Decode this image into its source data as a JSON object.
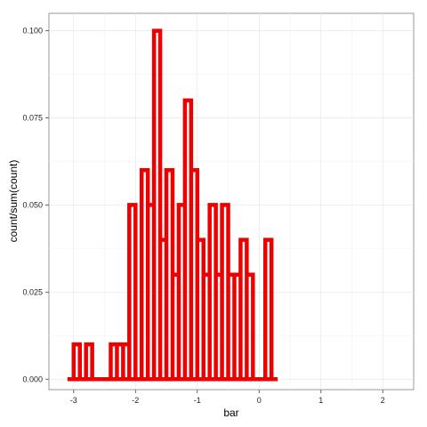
{
  "chart_data": {
    "type": "histogram",
    "xlabel": "bar",
    "ylabel": "count/sum(count)",
    "xlim": [
      -3.4,
      2.5
    ],
    "ylim": [
      -0.003,
      0.105
    ],
    "grid": true,
    "color": "#ee0000",
    "x_ticks": [
      -3,
      -2,
      -1,
      0,
      1,
      2
    ],
    "x_tick_labels": [
      "-3",
      "-2",
      "-1",
      "0",
      "1",
      "2"
    ],
    "y_ticks": [
      0,
      0.025,
      0.05,
      0.075,
      0.1
    ],
    "y_tick_labels": [
      "0.000",
      "0.025",
      "0.050",
      "0.075",
      "0.100"
    ],
    "bin_start": -3.1,
    "bin_width": 0.1,
    "values": [
      0,
      0.01,
      0,
      0.01,
      0,
      0,
      0,
      0.01,
      0.01,
      0.01,
      0.05,
      0,
      0.06,
      0.05,
      0.1,
      0.04,
      0.06,
      0.03,
      0.05,
      0.08,
      0.06,
      0.04,
      0.03,
      0.05,
      0.03,
      0.05,
      0.03,
      0.03,
      0.04,
      0.03,
      0,
      0,
      0.04,
      0
    ]
  }
}
